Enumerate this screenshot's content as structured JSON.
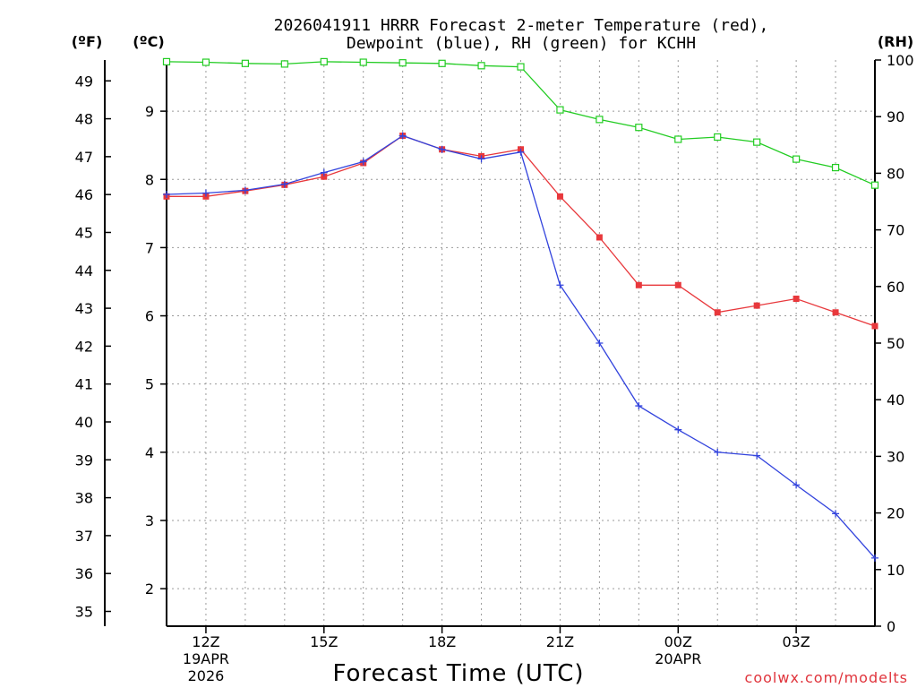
{
  "chart_data": {
    "type": "line",
    "title_line1": "2026041911 HRRR Forecast 2-meter Temperature (red),",
    "title_line2": "Dewpoint (blue), RH (green) for KCHH",
    "units": {
      "fahrenheit": "(ºF)",
      "celsius": "(ºC)",
      "rh": "(RH)"
    },
    "xlabel": "Forecast Time (UTC)",
    "credit": "coolwx.com/modelts",
    "xlim": [
      11,
      29
    ],
    "ylim_celsius": [
      1.45,
      9.75
    ],
    "ylim_rh": [
      0,
      100
    ],
    "y_ticks_celsius": [
      "2",
      "3",
      "4",
      "5",
      "6",
      "7",
      "8",
      "9"
    ],
    "y_ticks_fahrenheit": [
      "35",
      "36",
      "37",
      "38",
      "39",
      "40",
      "41",
      "42",
      "43",
      "44",
      "45",
      "46",
      "47",
      "48",
      "49"
    ],
    "y_ticks_rh": [
      "0",
      "10",
      "20",
      "30",
      "40",
      "50",
      "60",
      "70",
      "80",
      "90",
      "100"
    ],
    "x_ticks": [
      {
        "hour": 12,
        "label": "12Z",
        "sub1": "19APR",
        "sub2": "2026"
      },
      {
        "hour": 15,
        "label": "15Z",
        "sub1": "",
        "sub2": ""
      },
      {
        "hour": 18,
        "label": "18Z",
        "sub1": "",
        "sub2": ""
      },
      {
        "hour": 21,
        "label": "21Z",
        "sub1": "",
        "sub2": ""
      },
      {
        "hour": 24,
        "label": "00Z",
        "sub1": "20APR",
        "sub2": ""
      },
      {
        "hour": 27,
        "label": "03Z",
        "sub1": "",
        "sub2": ""
      }
    ],
    "x": [
      11,
      12,
      13,
      14,
      15,
      16,
      17,
      18,
      19,
      20,
      21,
      22,
      23,
      24,
      25,
      26,
      27,
      28,
      29
    ],
    "series": [
      {
        "name": "Temperature",
        "axis": "celsius",
        "color": "#e8383c",
        "marker": "square-filled",
        "values": [
          7.75,
          7.75,
          7.83,
          7.92,
          8.04,
          8.24,
          8.64,
          8.44,
          8.34,
          8.44,
          7.75,
          7.15,
          6.45,
          6.45,
          6.05,
          6.15,
          6.25,
          6.05,
          5.85
        ]
      },
      {
        "name": "Dewpoint",
        "axis": "celsius",
        "color": "#3344dd",
        "marker": "plus",
        "values": [
          7.78,
          7.8,
          7.84,
          7.93,
          8.1,
          8.26,
          8.64,
          8.44,
          8.3,
          8.4,
          6.45,
          5.6,
          4.68,
          4.33,
          4.0,
          3.95,
          3.52,
          3.1,
          2.45
        ]
      },
      {
        "name": "RH",
        "axis": "rh",
        "color": "#22cc22",
        "marker": "square-open",
        "values": [
          99.7,
          99.6,
          99.4,
          99.3,
          99.7,
          99.6,
          99.5,
          99.4,
          99.0,
          98.8,
          91.2,
          89.5,
          88.1,
          86.0,
          86.4,
          85.5,
          82.5,
          81.0,
          77.9
        ]
      }
    ]
  }
}
